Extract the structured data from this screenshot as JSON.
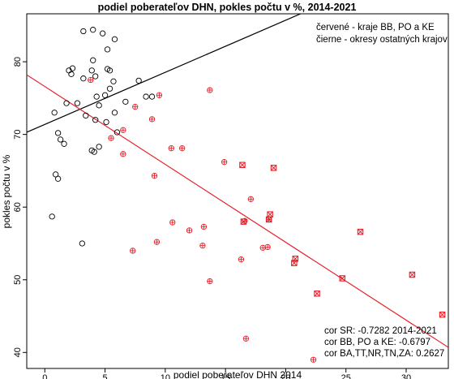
{
  "chart_data": {
    "type": "scatter",
    "title": "podiel poberateľov DHN, pokles počtu v %, 2014-2021",
    "xlabel": "podiel poberateľov DHN 2014",
    "ylabel": "pokles počtu v %",
    "xlim": [
      -1.5,
      33.5
    ],
    "ylim": [
      37.8,
      86.6
    ],
    "x_ticks": [
      0,
      5,
      10,
      15,
      20,
      25,
      30
    ],
    "y_ticks": [
      40,
      50,
      60,
      70,
      80
    ],
    "grid": false,
    "legend_position": "top-right",
    "legend": [
      "červené - kraje BB, PO a KE",
      "čierne - okresy ostatných krajov"
    ],
    "annotations": [
      "cor SR: -0.7282 2014-2021",
      "cor BB, PO a KE: -0.6797",
      "cor BA,TT,NR,TN,ZA: 0.2627"
    ],
    "colors": {
      "black": "#000000",
      "red": "#e8202a"
    },
    "series": [
      {
        "color": "black",
        "marker": "open-circle",
        "points": [
          [
            3.2,
            84.2
          ],
          [
            4.0,
            84.4
          ],
          [
            4.8,
            83.9
          ],
          [
            5.8,
            83.1
          ],
          [
            5.2,
            81.7
          ],
          [
            4.0,
            80.2
          ],
          [
            2.3,
            79.1
          ],
          [
            2.0,
            78.8
          ],
          [
            3.9,
            78.8
          ],
          [
            5.2,
            79.0
          ],
          [
            5.4,
            78.8
          ],
          [
            4.2,
            78.0
          ],
          [
            2.2,
            78.3
          ],
          [
            3.2,
            77.7
          ],
          [
            5.7,
            77.3
          ],
          [
            7.8,
            77.4
          ],
          [
            5.4,
            76.3
          ],
          [
            4.3,
            75.2
          ],
          [
            5.0,
            75.4
          ],
          [
            8.4,
            75.2
          ],
          [
            8.9,
            75.2
          ],
          [
            1.8,
            74.3
          ],
          [
            2.7,
            74.3
          ],
          [
            4.5,
            74.0
          ],
          [
            6.7,
            74.5
          ],
          [
            5.8,
            73.0
          ],
          [
            0.8,
            73.0
          ],
          [
            3.4,
            72.6
          ],
          [
            4.2,
            72.0
          ],
          [
            5.1,
            71.7
          ],
          [
            1.1,
            70.2
          ],
          [
            6.0,
            70.3
          ],
          [
            1.3,
            69.3
          ],
          [
            1.6,
            68.7
          ],
          [
            4.5,
            68.3
          ],
          [
            3.9,
            67.8
          ],
          [
            4.1,
            67.6
          ],
          [
            0.9,
            64.5
          ],
          [
            1.1,
            63.9
          ],
          [
            0.6,
            58.7
          ],
          [
            3.1,
            55.0
          ]
        ]
      },
      {
        "color": "red",
        "marker": "circle-plus",
        "points": [
          [
            3.8,
            77.5
          ],
          [
            7.5,
            73.8
          ],
          [
            9.5,
            75.4
          ],
          [
            13.7,
            76.1
          ],
          [
            8.9,
            72.1
          ],
          [
            6.5,
            70.6
          ],
          [
            5.5,
            69.5
          ],
          [
            6.5,
            67.3
          ],
          [
            10.5,
            68.1
          ],
          [
            11.4,
            68.1
          ],
          [
            14.9,
            66.2
          ],
          [
            9.1,
            64.3
          ],
          [
            17.1,
            61.1
          ],
          [
            10.6,
            57.9
          ],
          [
            13.2,
            57.3
          ],
          [
            12.0,
            56.8
          ],
          [
            16.6,
            58.1
          ],
          [
            18.6,
            58.3
          ],
          [
            9.3,
            55.2
          ],
          [
            13.1,
            54.7
          ],
          [
            7.3,
            54.0
          ],
          [
            18.1,
            54.4
          ],
          [
            18.5,
            54.5
          ],
          [
            16.3,
            52.8
          ],
          [
            13.7,
            49.8
          ],
          [
            16.7,
            41.9
          ],
          [
            22.3,
            39.0
          ]
        ]
      },
      {
        "color": "red",
        "marker": "square-x",
        "points": [
          [
            16.4,
            65.8
          ],
          [
            19.0,
            65.4
          ],
          [
            16.5,
            58.0
          ],
          [
            18.7,
            59.0
          ],
          [
            18.6,
            58.3
          ],
          [
            20.8,
            52.9
          ],
          [
            20.7,
            52.3
          ],
          [
            26.2,
            56.6
          ],
          [
            24.7,
            50.2
          ],
          [
            22.6,
            48.1
          ],
          [
            30.5,
            50.7
          ],
          [
            33.0,
            45.2
          ]
        ]
      }
    ],
    "regression_lines": [
      {
        "color": "black",
        "x": [
          -1.5,
          33.5
        ],
        "y": [
          70.3,
          95.4
        ]
      },
      {
        "color": "red",
        "x": [
          -1.5,
          33.5
        ],
        "y": [
          78.2,
          40.7
        ]
      }
    ]
  }
}
